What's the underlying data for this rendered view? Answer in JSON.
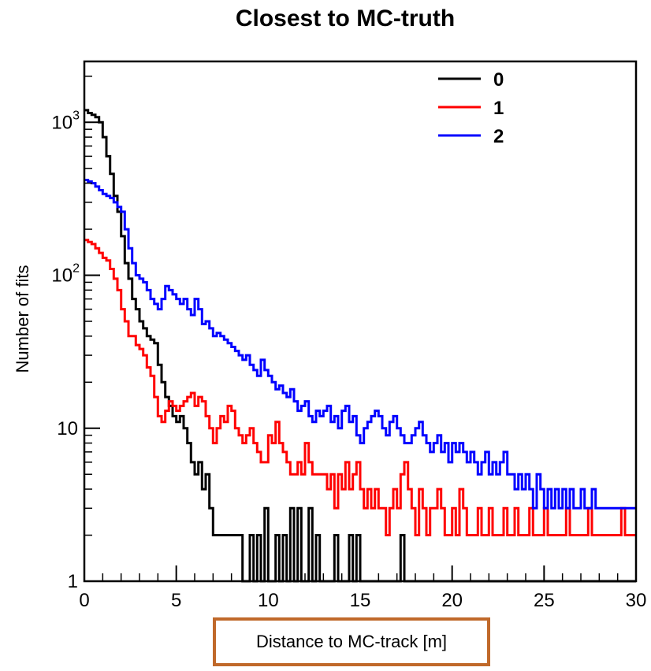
{
  "chart_data": {
    "type": "line",
    "title": "Closest to MC-truth",
    "xlabel": "Distance to MC-track [m]",
    "ylabel": "Number of fits",
    "xlim": [
      0,
      30
    ],
    "ylim": [
      1,
      2500
    ],
    "yscale": "log",
    "x_ticks": [
      "0",
      "5",
      "10",
      "15",
      "20",
      "25",
      "30"
    ],
    "x_tick_values": [
      0,
      5,
      10,
      15,
      20,
      25,
      30
    ],
    "y_ticks": [
      {
        "value": 1,
        "label": "1"
      },
      {
        "value": 10,
        "label": "10"
      },
      {
        "value": 100,
        "label": "10",
        "exp": "2"
      },
      {
        "value": 1000,
        "label": "10",
        "exp": "3"
      }
    ],
    "legend_position": "top-right",
    "bin_width": 0.2,
    "series": [
      {
        "name": "0",
        "color": "#000000",
        "values": [
          1200,
          1150,
          1120,
          1080,
          1000,
          800,
          600,
          460,
          330,
          260,
          180,
          120,
          95,
          70,
          60,
          50,
          45,
          40,
          38,
          36,
          26,
          20,
          16,
          14,
          12,
          11,
          12,
          10,
          8,
          6,
          5,
          6,
          4,
          5,
          3,
          2,
          2,
          2,
          2,
          2,
          2,
          2,
          2,
          1,
          1,
          2,
          1,
          2,
          1,
          3,
          1,
          1,
          2,
          1,
          2,
          1,
          3,
          1,
          3,
          1,
          1,
          3,
          1,
          2,
          1,
          1,
          1,
          1,
          2,
          1,
          1,
          1,
          2,
          1,
          2,
          1,
          1,
          1,
          1,
          1,
          1,
          1,
          1,
          1,
          1,
          1,
          2,
          1,
          1,
          1,
          1,
          1,
          1,
          1,
          1,
          1,
          1,
          1,
          1,
          1,
          1,
          1,
          1,
          1,
          1,
          1,
          1,
          1,
          1,
          1,
          1,
          1,
          1,
          1,
          1,
          1,
          1,
          1,
          1,
          1,
          1,
          1,
          1,
          1,
          1,
          1,
          1,
          1,
          1,
          1,
          1,
          1,
          1,
          1,
          1,
          1,
          1,
          1,
          1,
          1,
          1,
          1,
          1,
          1,
          1,
          1,
          1,
          1,
          1,
          1
        ]
      },
      {
        "name": "1",
        "color": "#ff0000",
        "values": [
          170,
          165,
          160,
          150,
          140,
          130,
          125,
          110,
          95,
          80,
          60,
          50,
          40,
          40,
          35,
          33,
          30,
          25,
          22,
          16,
          12,
          11,
          13,
          15,
          14,
          13,
          14,
          15,
          16,
          17,
          14,
          16,
          15,
          12,
          10,
          8,
          10,
          12,
          11,
          14,
          13,
          10,
          9,
          8,
          9,
          10,
          8,
          7,
          6,
          6,
          9,
          8,
          11,
          8,
          7,
          6,
          5,
          5,
          6,
          5,
          8,
          6,
          5,
          5,
          5,
          5,
          4,
          5,
          3,
          5,
          4,
          6,
          4,
          5,
          6,
          4,
          3,
          4,
          3,
          4,
          3,
          3,
          2,
          3,
          4,
          3,
          5,
          6,
          4,
          3,
          2,
          4,
          3,
          2,
          3,
          3,
          4,
          3,
          2,
          2,
          3,
          2,
          4,
          3,
          2,
          2,
          2,
          3,
          2,
          2,
          3,
          2,
          2,
          2,
          3,
          2,
          2,
          3,
          2,
          2,
          2,
          3,
          2,
          2,
          2,
          3,
          2,
          2,
          2,
          2,
          2,
          3,
          2,
          2,
          2,
          2,
          2,
          3,
          2,
          2,
          2,
          2,
          2,
          2,
          2,
          2,
          3,
          2,
          2,
          2
        ]
      },
      {
        "name": "2",
        "color": "#0000ff",
        "values": [
          420,
          410,
          400,
          380,
          360,
          340,
          330,
          320,
          300,
          280,
          260,
          200,
          150,
          120,
          100,
          95,
          90,
          80,
          70,
          65,
          60,
          70,
          85,
          80,
          75,
          70,
          65,
          70,
          60,
          55,
          70,
          60,
          48,
          50,
          45,
          40,
          42,
          40,
          38,
          36,
          34,
          32,
          30,
          28,
          30,
          26,
          24,
          22,
          28,
          24,
          22,
          20,
          18,
          19,
          17,
          16,
          18,
          15,
          13,
          14,
          15,
          12,
          11,
          13,
          12,
          13,
          14,
          11,
          12,
          10,
          13,
          14,
          11,
          12,
          9,
          8,
          10,
          11,
          12,
          13,
          12,
          10,
          9,
          11,
          12,
          10,
          9,
          8,
          8,
          9,
          10,
          11,
          9,
          8,
          7,
          8,
          9,
          7,
          8,
          6,
          8,
          7,
          8,
          7,
          6,
          7,
          6,
          5,
          6,
          7,
          5,
          6,
          5,
          6,
          7,
          5,
          5,
          4,
          5,
          4,
          5,
          4,
          3,
          5,
          4,
          3,
          4,
          3,
          4,
          3,
          4,
          3,
          4,
          3,
          3,
          4,
          3,
          3,
          4,
          3,
          3,
          3,
          3,
          3,
          3,
          3,
          3,
          3,
          3,
          3
        ]
      }
    ]
  }
}
